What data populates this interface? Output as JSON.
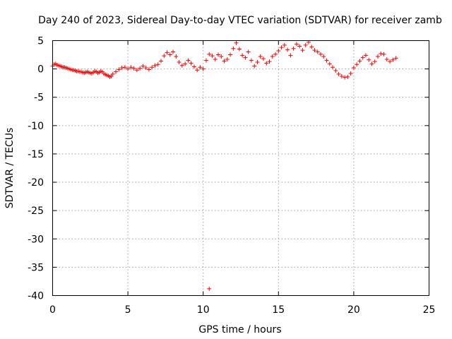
{
  "chart_data": {
    "type": "scatter",
    "title": "Day 240 of 2023, Sidereal Day-to-day VTEC variation (SDTVAR) for receiver zamb",
    "xlabel": "GPS time / hours",
    "ylabel": "SDTVAR / TECUs",
    "xlim": [
      0,
      25
    ],
    "ylim": [
      -40,
      5
    ],
    "xticks": [
      0,
      5,
      10,
      15,
      20,
      25
    ],
    "xtick_labels": [
      "0",
      "5",
      "10",
      "15",
      "20",
      "25"
    ],
    "yticks": [
      5,
      0,
      -5,
      -10,
      -15,
      -20,
      -25,
      -30,
      -35,
      -40
    ],
    "ytick_labels": [
      "5",
      "0",
      "-5",
      "-10",
      "-15",
      "-20",
      "-25",
      "-30",
      "-35",
      "-40"
    ],
    "grid": true,
    "marker": "plus",
    "color": "#ff0000",
    "series": [
      {
        "name": "SDTVAR",
        "x": [
          0.0,
          0.1,
          0.2,
          0.3,
          0.4,
          0.5,
          0.6,
          0.7,
          0.8,
          0.9,
          1.0,
          1.1,
          1.2,
          1.3,
          1.4,
          1.5,
          1.6,
          1.7,
          1.8,
          1.9,
          2.0,
          2.1,
          2.2,
          2.3,
          2.4,
          2.5,
          2.6,
          2.7,
          2.8,
          2.9,
          3.0,
          3.1,
          3.2,
          3.3,
          3.4,
          3.5,
          3.6,
          3.7,
          3.8,
          3.9,
          4.0,
          4.2,
          4.4,
          4.6,
          4.8,
          5.0,
          5.2,
          5.4,
          5.6,
          5.8,
          6.0,
          6.2,
          6.4,
          6.6,
          6.8,
          7.0,
          7.2,
          7.4,
          7.6,
          7.8,
          8.0,
          8.2,
          8.4,
          8.6,
          8.8,
          9.0,
          9.2,
          9.4,
          9.6,
          9.8,
          10.0,
          10.2,
          10.4,
          10.6,
          10.8,
          11.0,
          11.2,
          11.4,
          11.6,
          11.8,
          12.0,
          12.2,
          12.4,
          12.6,
          12.8,
          13.0,
          13.2,
          13.4,
          13.6,
          13.8,
          14.0,
          14.2,
          14.4,
          14.6,
          14.8,
          15.0,
          15.2,
          15.4,
          15.6,
          15.8,
          16.0,
          16.2,
          16.4,
          16.6,
          16.8,
          17.0,
          17.2,
          17.4,
          17.6,
          17.8,
          18.0,
          18.2,
          18.4,
          18.6,
          18.8,
          19.0,
          19.2,
          19.4,
          19.6,
          19.8,
          20.0,
          20.2,
          20.4,
          20.6,
          20.8,
          21.0,
          21.2,
          21.4,
          21.6,
          21.8,
          22.0,
          22.2,
          22.4,
          22.6,
          22.8,
          10.4
        ],
        "values": [
          0.5,
          0.8,
          0.9,
          0.7,
          0.6,
          0.5,
          0.4,
          0.3,
          0.3,
          0.2,
          0.1,
          0.0,
          -0.1,
          -0.2,
          -0.2,
          -0.3,
          -0.4,
          -0.4,
          -0.5,
          -0.5,
          -0.6,
          -0.7,
          -0.6,
          -0.5,
          -0.6,
          -0.7,
          -0.8,
          -0.6,
          -0.4,
          -0.5,
          -0.7,
          -0.6,
          -0.4,
          -0.5,
          -0.8,
          -1.0,
          -1.1,
          -1.2,
          -1.4,
          -1.3,
          -0.9,
          -0.5,
          -0.1,
          0.2,
          0.3,
          0.0,
          0.3,
          0.1,
          -0.2,
          0.1,
          0.5,
          0.2,
          -0.1,
          0.3,
          0.6,
          0.8,
          1.4,
          2.3,
          2.9,
          2.5,
          3.0,
          2.2,
          1.2,
          0.6,
          0.9,
          1.5,
          1.0,
          0.4,
          -0.2,
          0.3,
          0.0,
          1.5,
          2.6,
          2.3,
          1.7,
          2.5,
          2.2,
          1.4,
          1.7,
          2.5,
          3.6,
          4.6,
          3.5,
          2.4,
          2.0,
          3.0,
          1.5,
          0.5,
          1.2,
          2.2,
          1.8,
          1.0,
          1.3,
          2.2,
          2.6,
          3.2,
          3.8,
          4.2,
          3.4,
          2.4,
          3.6,
          4.4,
          4.0,
          3.3,
          4.2,
          4.7,
          3.9,
          3.3,
          3.0,
          2.6,
          2.2,
          1.5,
          0.9,
          0.3,
          -0.3,
          -0.9,
          -1.3,
          -1.5,
          -1.4,
          -0.8,
          0.2,
          0.8,
          1.4,
          2.0,
          2.4,
          1.6,
          0.9,
          1.3,
          2.2,
          2.7,
          2.6,
          1.7,
          1.3,
          1.6,
          1.9,
          -38.8
        ]
      }
    ]
  }
}
